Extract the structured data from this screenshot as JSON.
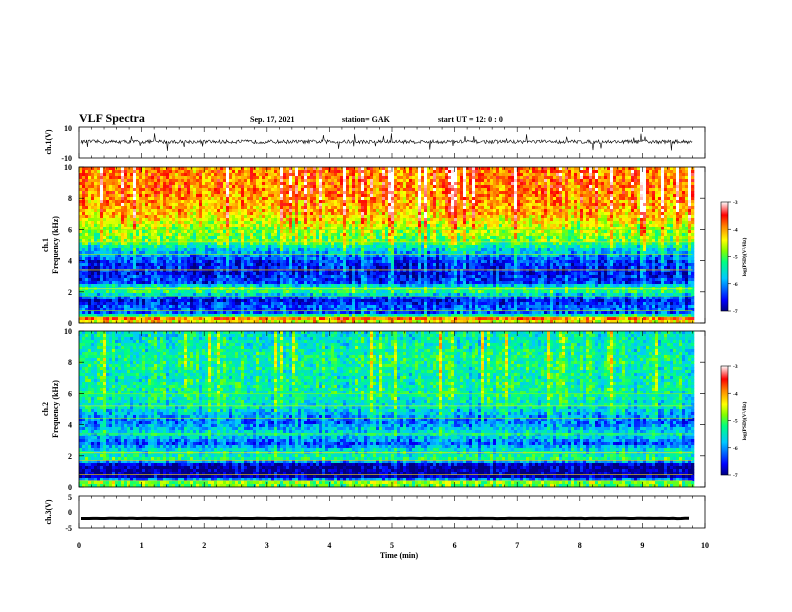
{
  "header": {
    "title": "VLF Spectra",
    "date": "Sep. 17, 2021",
    "station": "station= GAK",
    "start": "start  UT  =   12: 0  : 0"
  },
  "chart_data": [
    {
      "type": "line",
      "ylabel": "ch.1(V)",
      "ylim": [
        -10,
        10
      ],
      "yticks": [
        "10",
        "-10"
      ],
      "xlim": [
        0,
        10
      ],
      "series": [
        {
          "baseline": 0.5,
          "noise_amplitude": 1.2,
          "spike_amplitude": 5
        }
      ]
    },
    {
      "type": "heatmap",
      "ylabel": "ch.1\nFrequency (kHz)",
      "ylim": [
        0,
        10
      ],
      "yticks": [
        "0",
        "2",
        "4",
        "6",
        "8",
        "10"
      ],
      "xlim": [
        0,
        10
      ],
      "data_end_min": 9.8,
      "colorbar": {
        "label": "log(PSD)(V²/Hz)",
        "ticks": [
          "-3",
          "-4",
          "-5",
          "-6",
          "-7"
        ],
        "range": [
          -7,
          -3
        ]
      },
      "profile": [
        {
          "f": 0.0,
          "v": -4.8
        },
        {
          "f": 0.25,
          "v": -3.6
        },
        {
          "f": 0.6,
          "v": -6.3
        },
        {
          "f": 1.0,
          "v": -6.2
        },
        {
          "f": 1.5,
          "v": -6.6
        },
        {
          "f": 2.0,
          "v": -5.2
        },
        {
          "f": 2.3,
          "v": -5.3
        },
        {
          "f": 2.6,
          "v": -6.4
        },
        {
          "f": 3.2,
          "v": -6.6
        },
        {
          "f": 4.0,
          "v": -6.4
        },
        {
          "f": 4.8,
          "v": -5.6
        },
        {
          "f": 5.2,
          "v": -5.0
        },
        {
          "f": 6.0,
          "v": -4.7
        },
        {
          "f": 7.0,
          "v": -4.2
        },
        {
          "f": 8.5,
          "v": -3.9
        },
        {
          "f": 10.0,
          "v": -3.9
        }
      ]
    },
    {
      "type": "heatmap",
      "ylabel": "ch.2\nFrequency (kHz)",
      "ylim": [
        0,
        10
      ],
      "yticks": [
        "0",
        "2",
        "4",
        "6",
        "8",
        "10"
      ],
      "xlim": [
        0,
        10
      ],
      "data_end_min": 9.8,
      "colorbar": {
        "label": "log(PSD)(V²/Hz)",
        "ticks": [
          "-3",
          "-4",
          "-5",
          "-6",
          "-7"
        ],
        "range": [
          -7,
          -3
        ]
      },
      "profile": [
        {
          "f": 0.0,
          "v": -5.0
        },
        {
          "f": 0.3,
          "v": -4.8
        },
        {
          "f": 0.6,
          "v": -6.9
        },
        {
          "f": 1.4,
          "v": -6.9
        },
        {
          "f": 1.8,
          "v": -5.2
        },
        {
          "f": 2.4,
          "v": -5.6
        },
        {
          "f": 2.8,
          "v": -6.3
        },
        {
          "f": 3.4,
          "v": -5.5
        },
        {
          "f": 4.2,
          "v": -6.2
        },
        {
          "f": 5.0,
          "v": -5.6
        },
        {
          "f": 6.0,
          "v": -5.3
        },
        {
          "f": 7.0,
          "v": -5.4
        },
        {
          "f": 8.0,
          "v": -5.3
        },
        {
          "f": 10.0,
          "v": -5.5
        }
      ]
    },
    {
      "type": "line",
      "ylabel": "ch.3(V)",
      "ylim": [
        -5,
        5
      ],
      "yticks": [
        "5",
        "0",
        "-5"
      ],
      "xlim": [
        0,
        10
      ],
      "xticks": [
        "0",
        "1",
        "2",
        "3",
        "4",
        "5",
        "6",
        "7",
        "8",
        "9",
        "10"
      ],
      "xlabel": "Time (min)",
      "series": [
        {
          "baseline": -2,
          "noise_amplitude": 0.1
        }
      ]
    }
  ],
  "colors": {
    "colormap": [
      "#000080",
      "#0000ff",
      "#00c0ff",
      "#00ff80",
      "#80ff00",
      "#ffff00",
      "#ff8000",
      "#ff0000",
      "#ffffff"
    ]
  }
}
